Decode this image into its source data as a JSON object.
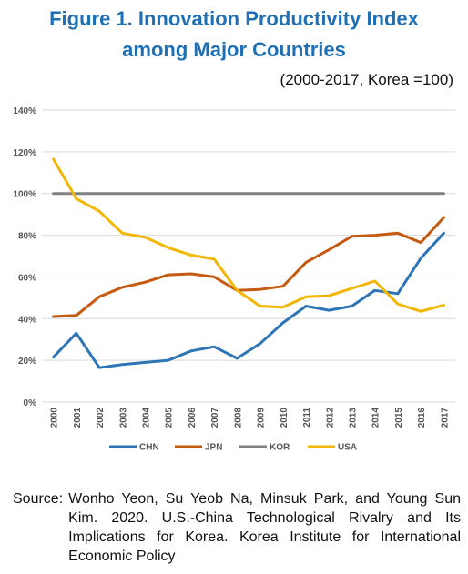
{
  "figure": {
    "title_line1": "Figure 1. Innovation Productivity Index",
    "title_line2": "among Major Countries",
    "subtitle": "(2000-2017, Korea =100)"
  },
  "source": {
    "label": "Source:",
    "text": "Wonho Yeon, Su Yeob Na, Minsuk Park, and Young Sun Kim. 2020. U.S.-China Technological Rivalry and Its Implications for Korea. Korea Institute for International Economic Policy"
  },
  "chart_data": {
    "type": "line",
    "title": "Figure 1. Innovation Productivity Index among Major Countries",
    "subtitle": "(2000-2017, Korea =100)",
    "x": [
      "2000",
      "2001",
      "2002",
      "2003",
      "2004",
      "2005",
      "2006",
      "2007",
      "2008",
      "2009",
      "2010",
      "2011",
      "2012",
      "2013",
      "2014",
      "2015",
      "2016",
      "2017"
    ],
    "ylim": [
      0,
      140
    ],
    "yticks": [
      0,
      20,
      40,
      60,
      80,
      100,
      120,
      140
    ],
    "ytick_labels": [
      "0%",
      "20%",
      "40%",
      "60%",
      "80%",
      "100%",
      "120%",
      "140%"
    ],
    "grid": true,
    "legend": "bottom",
    "series": [
      {
        "name": "CHN",
        "color": "#2e75b6",
        "values": [
          21.5,
          33,
          16.5,
          18,
          19,
          20,
          24.5,
          26.5,
          21,
          28,
          38,
          46,
          44,
          46,
          53.5,
          52,
          69,
          81
        ]
      },
      {
        "name": "JPN",
        "color": "#c55a11",
        "values": [
          41,
          41.5,
          50.5,
          55,
          57.5,
          61,
          61.5,
          60,
          53.5,
          54,
          55.5,
          67,
          73,
          79.5,
          80,
          81,
          76.5,
          88.5
        ]
      },
      {
        "name": "KOR",
        "color": "#808080",
        "values": [
          100,
          100,
          100,
          100,
          100,
          100,
          100,
          100,
          100,
          100,
          100,
          100,
          100,
          100,
          100,
          100,
          100,
          100
        ]
      },
      {
        "name": "USA",
        "color": "#f2b705",
        "values": [
          116.5,
          97.5,
          91.5,
          81,
          79,
          74,
          70.5,
          68.5,
          53.5,
          46,
          45.5,
          50.5,
          51,
          54.5,
          58,
          47,
          43.5,
          46.5
        ]
      }
    ]
  }
}
